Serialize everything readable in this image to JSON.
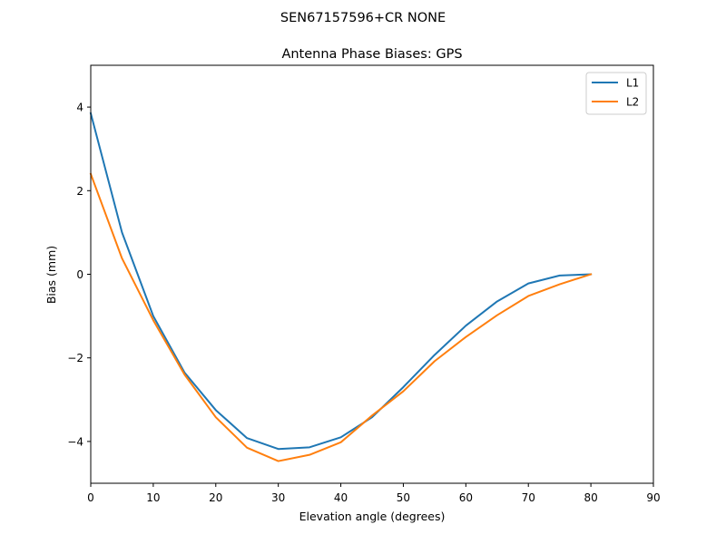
{
  "chart_data": {
    "type": "line",
    "suptitle": "SEN67157596+CR  NONE",
    "title": "Antenna Phase Biases: GPS",
    "xlabel": "Elevation angle (degrees)",
    "ylabel": "Bias (mm)",
    "xlim": [
      0,
      90
    ],
    "ylim": [
      -5,
      5
    ],
    "xticks": [
      0,
      10,
      20,
      30,
      40,
      50,
      60,
      70,
      80,
      90
    ],
    "yticks": [
      -4,
      -2,
      0,
      2,
      4
    ],
    "xtick_labels": [
      "0",
      "10",
      "20",
      "30",
      "40",
      "50",
      "60",
      "70",
      "80",
      "90"
    ],
    "ytick_labels": [
      "−4",
      "−2",
      "0",
      "2",
      "4"
    ],
    "grid": false,
    "legend": "top-right",
    "x": [
      0,
      5,
      10,
      15,
      20,
      25,
      30,
      35,
      40,
      45,
      50,
      55,
      60,
      65,
      70,
      75,
      80
    ],
    "series": [
      {
        "name": "L1",
        "color": "#1f77b4",
        "values": [
          3.85,
          1.0,
          -1.0,
          -2.35,
          -3.25,
          -3.92,
          -4.18,
          -4.14,
          -3.9,
          -3.42,
          -2.7,
          -1.93,
          -1.23,
          -0.65,
          -0.22,
          -0.03,
          0.0
        ]
      },
      {
        "name": "L2",
        "color": "#ff7f0e",
        "values": [
          2.4,
          0.38,
          -1.1,
          -2.4,
          -3.42,
          -4.15,
          -4.47,
          -4.32,
          -4.02,
          -3.38,
          -2.8,
          -2.08,
          -1.5,
          -0.98,
          -0.52,
          -0.24,
          0.0
        ]
      }
    ]
  }
}
